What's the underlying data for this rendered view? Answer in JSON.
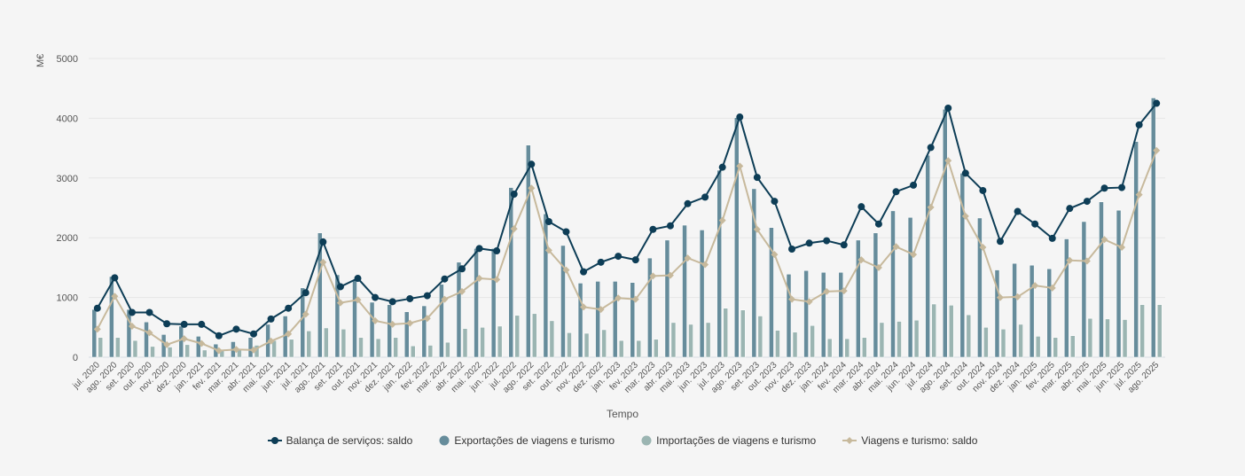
{
  "chart_data": {
    "type": "bar",
    "title": "",
    "xlabel": "Tempo",
    "ylabel": "M€",
    "ylim": [
      0,
      5000
    ],
    "yticks": [
      "0",
      "1000",
      "2000",
      "3000",
      "4000",
      "5000"
    ],
    "grid": true,
    "legend_position": "bottom",
    "categories": [
      "jul. 2020",
      "ago. 2020",
      "set. 2020",
      "out. 2020",
      "nov. 2020",
      "dez. 2020",
      "jan. 2021",
      "fev. 2021",
      "mar. 2021",
      "abr. 2021",
      "mai. 2021",
      "jun. 2021",
      "jul. 2021",
      "ago. 2021",
      "set. 2021",
      "out. 2021",
      "nov. 2021",
      "dez. 2021",
      "jan. 2022",
      "fev. 2022",
      "mar. 2022",
      "abr. 2022",
      "mai. 2022",
      "jun. 2022",
      "jul. 2022",
      "ago. 2022",
      "set. 2022",
      "out. 2022",
      "nov. 2022",
      "dez. 2022",
      "jan. 2023",
      "fev. 2023",
      "mar. 2023",
      "abr. 2023",
      "mai. 2023",
      "jun. 2023",
      "jul. 2023",
      "ago. 2023",
      "set. 2023",
      "out. 2023",
      "nov. 2023",
      "dez. 2023",
      "jan. 2024",
      "fev. 2024",
      "mar. 2024",
      "abr. 2024",
      "mai. 2024",
      "jun. 2024",
      "jul. 2024",
      "ago. 2024",
      "set. 2024",
      "out. 2024",
      "nov. 2024",
      "dez. 2024",
      "jan. 2025",
      "fev. 2025",
      "mar. 2025",
      "abr. 2025",
      "mai. 2025",
      "jun. 2025",
      "jul. 2025",
      "ago. 2025"
    ],
    "series": [
      {
        "name": "Balança de serviços: saldo",
        "kind": "line",
        "marker": "circle",
        "color": "#0d3d56",
        "values": [
          820,
          1330,
          750,
          750,
          560,
          550,
          550,
          360,
          470,
          390,
          640,
          820,
          1080,
          1930,
          1180,
          1320,
          1000,
          930,
          980,
          1030,
          1310,
          1480,
          1820,
          1780,
          2730,
          3230,
          2270,
          2100,
          1430,
          1590,
          1690,
          1630,
          2140,
          2200,
          2570,
          2680,
          3180,
          4020,
          3010,
          2610,
          1810,
          1910,
          1950,
          1880,
          2520,
          2230,
          2770,
          2880,
          3510,
          4170,
          3080,
          2790,
          1940,
          2440,
          2230,
          1990,
          2490,
          2610,
          2830,
          2840,
          3890,
          4250
        ]
      },
      {
        "name": "Exportações de viagens e turismo",
        "kind": "bar",
        "color": "#668c9b",
        "values": [
          800,
          1350,
          800,
          590,
          380,
          520,
          350,
          220,
          260,
          330,
          550,
          690,
          1160,
          2080,
          1380,
          1290,
          920,
          880,
          760,
          860,
          1220,
          1590,
          1820,
          1820,
          2840,
          3550,
          2400,
          1870,
          1240,
          1270,
          1270,
          1250,
          1660,
          1960,
          2210,
          2130,
          3130,
          4010,
          2820,
          2170,
          1390,
          1450,
          1420,
          1420,
          1960,
          2080,
          2450,
          2340,
          3380,
          4150,
          3080,
          2330,
          1460,
          1570,
          1540,
          1480,
          1980,
          2270,
          2600,
          2460,
          3610,
          4340
        ]
      },
      {
        "name": "Importações de viagens e turismo",
        "kind": "bar",
        "color": "#9bb5b2",
        "values": [
          330,
          330,
          280,
          180,
          170,
          210,
          120,
          110,
          130,
          200,
          280,
          300,
          440,
          490,
          470,
          330,
          310,
          330,
          190,
          200,
          250,
          480,
          500,
          520,
          700,
          730,
          610,
          410,
          400,
          460,
          280,
          280,
          300,
          580,
          550,
          580,
          820,
          790,
          690,
          450,
          420,
          530,
          310,
          310,
          330,
          580,
          600,
          620,
          890,
          870,
          710,
          500,
          470,
          550,
          350,
          330,
          360,
          650,
          640,
          630,
          880,
          880
        ]
      },
      {
        "name": "Viagens e turismo: saldo",
        "kind": "line",
        "marker": "diamond",
        "color": "#c7b99c",
        "values": [
          470,
          1020,
          520,
          410,
          210,
          310,
          230,
          110,
          130,
          120,
          270,
          390,
          720,
          1590,
          910,
          960,
          610,
          550,
          570,
          650,
          970,
          1100,
          1320,
          1300,
          2150,
          2830,
          1790,
          1460,
          840,
          800,
          990,
          970,
          1360,
          1370,
          1660,
          1550,
          2290,
          3200,
          2140,
          1720,
          970,
          930,
          1100,
          1110,
          1630,
          1500,
          1850,
          1720,
          2510,
          3290,
          2360,
          1840,
          1000,
          1010,
          1200,
          1160,
          1620,
          1610,
          1970,
          1840,
          2720,
          3460
        ]
      }
    ]
  }
}
